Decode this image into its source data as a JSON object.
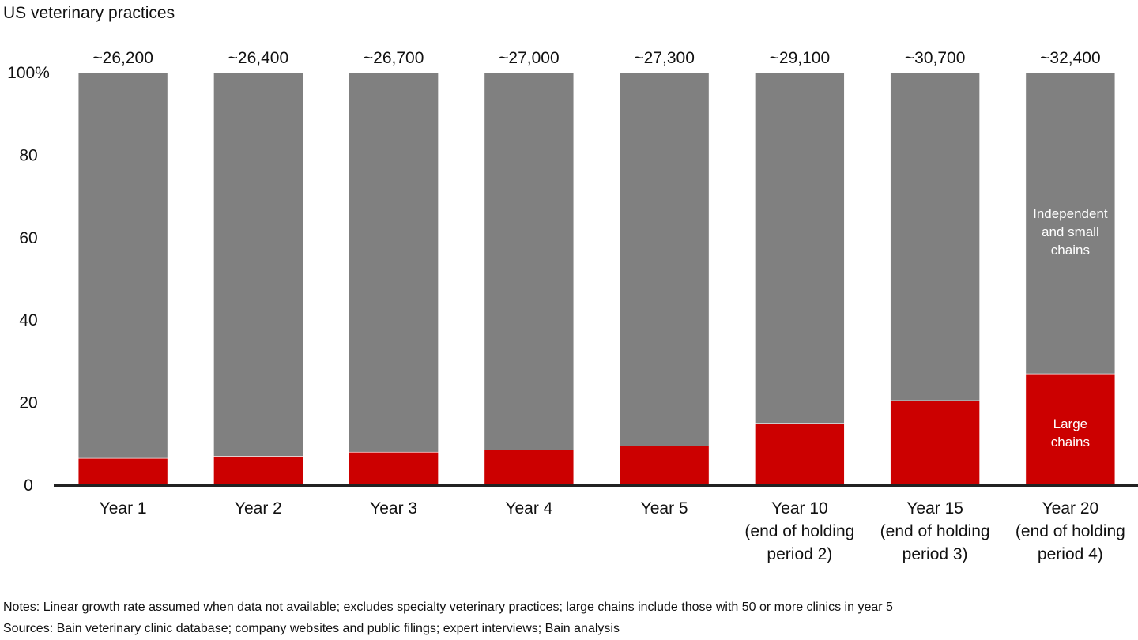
{
  "title": "US veterinary practices",
  "chart_data": {
    "type": "stacked_bar",
    "categories": [
      "Year 1",
      "Year 2",
      "Year 3",
      "Year 4",
      "Year 5",
      "Year 10\n(end of holding\nperiod 2)",
      "Year 15\n(end of holding\nperiod 3)",
      "Year 20\n(end of holding\nperiod 4)"
    ],
    "series": [
      {
        "name": "Large\nchains",
        "color": "#cc0000",
        "values": [
          6.5,
          7,
          8,
          8.5,
          9.5,
          15,
          20.5,
          27
        ]
      },
      {
        "name": "Independent\nand small\nchains",
        "color": "#808080",
        "values": [
          93.5,
          93,
          92,
          91.5,
          90.5,
          85,
          79.5,
          73
        ]
      }
    ],
    "total_labels": [
      "~26,200",
      "~26,400",
      "~26,700",
      "~27,000",
      "~27,300",
      "~29,100",
      "~30,700",
      "~32,400"
    ],
    "ylim": [
      0,
      100
    ],
    "yticks": [
      0,
      20,
      40,
      60,
      80,
      {
        "value": 100,
        "label": "100%"
      }
    ]
  },
  "notes": [
    "Notes: Linear growth rate assumed when data not available; excludes specialty veterinary practices; large chains include those with 50 or more clinics in year 5",
    "Sources: Bain veterinary clinic database; company websites and public filings; expert interviews; Bain analysis"
  ]
}
